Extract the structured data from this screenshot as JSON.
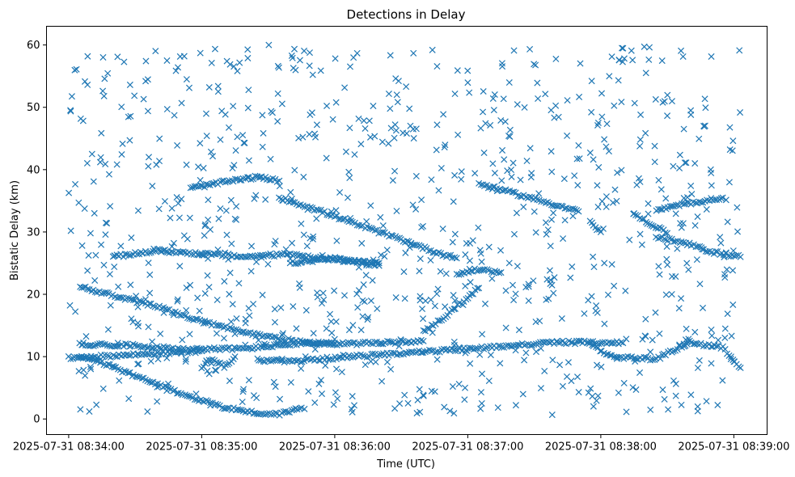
{
  "chart_data": {
    "type": "scatter",
    "title": "Detections in Delay",
    "xlabel": "Time (UTC)",
    "ylabel": "Bistatic Delay (km)",
    "xlim": [
      "2025-07-31 08:33:50",
      "2025-07-31 08:39:15"
    ],
    "ylim": [
      -2.5,
      63
    ],
    "x_ticks": [
      {
        "value": "2025-07-31 08:34:00",
        "label": "2025-07-31 08:34:00"
      },
      {
        "value": "2025-07-31 08:35:00",
        "label": "2025-07-31 08:35:00"
      },
      {
        "value": "2025-07-31 08:36:00",
        "label": "2025-07-31 08:36:00"
      },
      {
        "value": "2025-07-31 08:37:00",
        "label": "2025-07-31 08:37:00"
      },
      {
        "value": "2025-07-31 08:38:00",
        "label": "2025-07-31 08:38:00"
      },
      {
        "value": "2025-07-31 08:39:00",
        "label": "2025-07-31 08:39:00"
      }
    ],
    "y_ticks": [
      0,
      10,
      20,
      30,
      40,
      50,
      60
    ],
    "grid": false,
    "legend": "none",
    "marker": "x",
    "color": "#1f77b4",
    "tracks": [
      {
        "points": [
          [
            "08:34:05",
            21.2
          ],
          [
            "08:34:20",
            19.8
          ],
          [
            "08:34:40",
            18.0
          ],
          [
            "08:35:00",
            15.6
          ],
          [
            "08:35:20",
            13.8
          ],
          [
            "08:35:40",
            12.6
          ],
          [
            "08:36:00",
            12.0
          ],
          [
            "08:36:20",
            12.2
          ],
          [
            "08:36:40",
            12.5
          ]
        ]
      },
      {
        "points": [
          [
            "08:34:05",
            12.0
          ],
          [
            "08:34:30",
            11.8
          ],
          [
            "08:34:50",
            11.2
          ],
          [
            "08:35:20",
            11.3
          ],
          [
            "08:35:40",
            12.0
          ],
          [
            "08:36:00",
            12.2
          ]
        ]
      },
      {
        "points": [
          [
            "08:34:05",
            10.0
          ],
          [
            "08:34:15",
            9.0
          ],
          [
            "08:34:25",
            7.6
          ],
          [
            "08:34:40",
            5.5
          ],
          [
            "08:34:55",
            3.5
          ],
          [
            "08:35:10",
            1.9
          ],
          [
            "08:35:25",
            0.9
          ],
          [
            "08:35:35",
            0.8
          ],
          [
            "08:35:45",
            1.8
          ]
        ]
      },
      {
        "points": [
          [
            "08:35:25",
            9.5
          ],
          [
            "08:35:40",
            9.2
          ],
          [
            "08:36:00",
            9.8
          ],
          [
            "08:36:20",
            10.3
          ],
          [
            "08:36:40",
            10.8
          ],
          [
            "08:37:00",
            11.2
          ],
          [
            "08:37:20",
            11.8
          ],
          [
            "08:37:40",
            12.3
          ],
          [
            "08:38:00",
            12.3
          ],
          [
            "08:38:10",
            12.2
          ]
        ]
      },
      {
        "points": [
          [
            "08:34:55",
            37.0
          ],
          [
            "08:35:10",
            38.0
          ],
          [
            "08:35:25",
            38.8
          ],
          [
            "08:35:35",
            38.2
          ]
        ]
      },
      {
        "points": [
          [
            "08:35:35",
            35.5
          ],
          [
            "08:35:50",
            33.8
          ],
          [
            "08:36:00",
            32.5
          ],
          [
            "08:36:10",
            31.2
          ],
          [
            "08:36:30",
            28.8
          ],
          [
            "08:36:45",
            26.8
          ],
          [
            "08:36:55",
            25.8
          ]
        ]
      },
      {
        "points": [
          [
            "08:36:55",
            23.2
          ],
          [
            "08:37:05",
            24.0
          ],
          [
            "08:37:15",
            23.5
          ]
        ]
      },
      {
        "points": [
          [
            "08:37:05",
            37.7
          ],
          [
            "08:37:20",
            36.3
          ],
          [
            "08:37:35",
            34.8
          ],
          [
            "08:37:50",
            33.3
          ]
        ]
      },
      {
        "points": [
          [
            "08:38:25",
            29.2
          ],
          [
            "08:38:40",
            28.0
          ],
          [
            "08:38:50",
            26.8
          ],
          [
            "08:39:03",
            26.0
          ]
        ]
      },
      {
        "points": [
          [
            "08:36:40",
            14.0
          ],
          [
            "08:36:50",
            16.5
          ],
          [
            "08:37:00",
            19.5
          ],
          [
            "08:37:05",
            21.0
          ]
        ]
      },
      {
        "points": [
          [
            "08:38:25",
            33.5
          ],
          [
            "08:38:40",
            34.6
          ],
          [
            "08:38:55",
            35.5
          ]
        ]
      },
      {
        "points": [
          [
            "08:38:15",
            32.8
          ],
          [
            "08:38:30",
            29.8
          ]
        ]
      },
      {
        "points": [
          [
            "08:34:00",
            9.8
          ],
          [
            "08:34:40",
            10.5
          ],
          [
            "08:35:00",
            10.9
          ]
        ]
      },
      {
        "points": [
          [
            "08:34:20",
            26.0
          ],
          [
            "08:34:40",
            27.0
          ],
          [
            "08:35:00",
            26.5
          ],
          [
            "08:35:20",
            26.0
          ],
          [
            "08:35:40",
            26.5
          ],
          [
            "08:36:00",
            25.5
          ],
          [
            "08:36:20",
            25.0
          ]
        ]
      },
      {
        "points": [
          [
            "08:35:40",
            25.0
          ],
          [
            "08:36:00",
            25.8
          ],
          [
            "08:36:20",
            24.6
          ]
        ]
      },
      {
        "points": [
          [
            "08:37:55",
            31.6
          ],
          [
            "08:38:00",
            30.0
          ]
        ]
      },
      {
        "points": [
          [
            "08:35:00",
            8.3
          ],
          [
            "08:35:05",
            9.7
          ],
          [
            "08:35:10",
            8.3
          ],
          [
            "08:35:15",
            10.0
          ]
        ]
      },
      {
        "points": [
          [
            "08:37:55",
            12.0
          ],
          [
            "08:38:05",
            10.0
          ],
          [
            "08:38:25",
            9.6
          ],
          [
            "08:38:40",
            12.3
          ],
          [
            "08:38:55",
            11.4
          ],
          [
            "08:39:03",
            8.2
          ]
        ]
      }
    ]
  }
}
